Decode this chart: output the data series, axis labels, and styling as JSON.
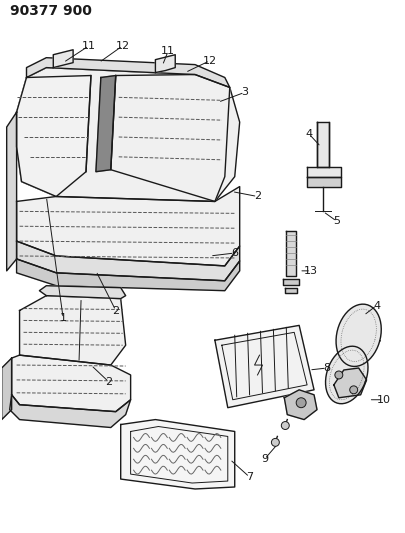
{
  "title": "90377 900",
  "bg_color": "#ffffff",
  "line_color": "#1a1a1a",
  "title_fontsize": 10,
  "title_fontweight": "bold",
  "figsize": [
    4.05,
    5.33
  ],
  "dpi": 100
}
